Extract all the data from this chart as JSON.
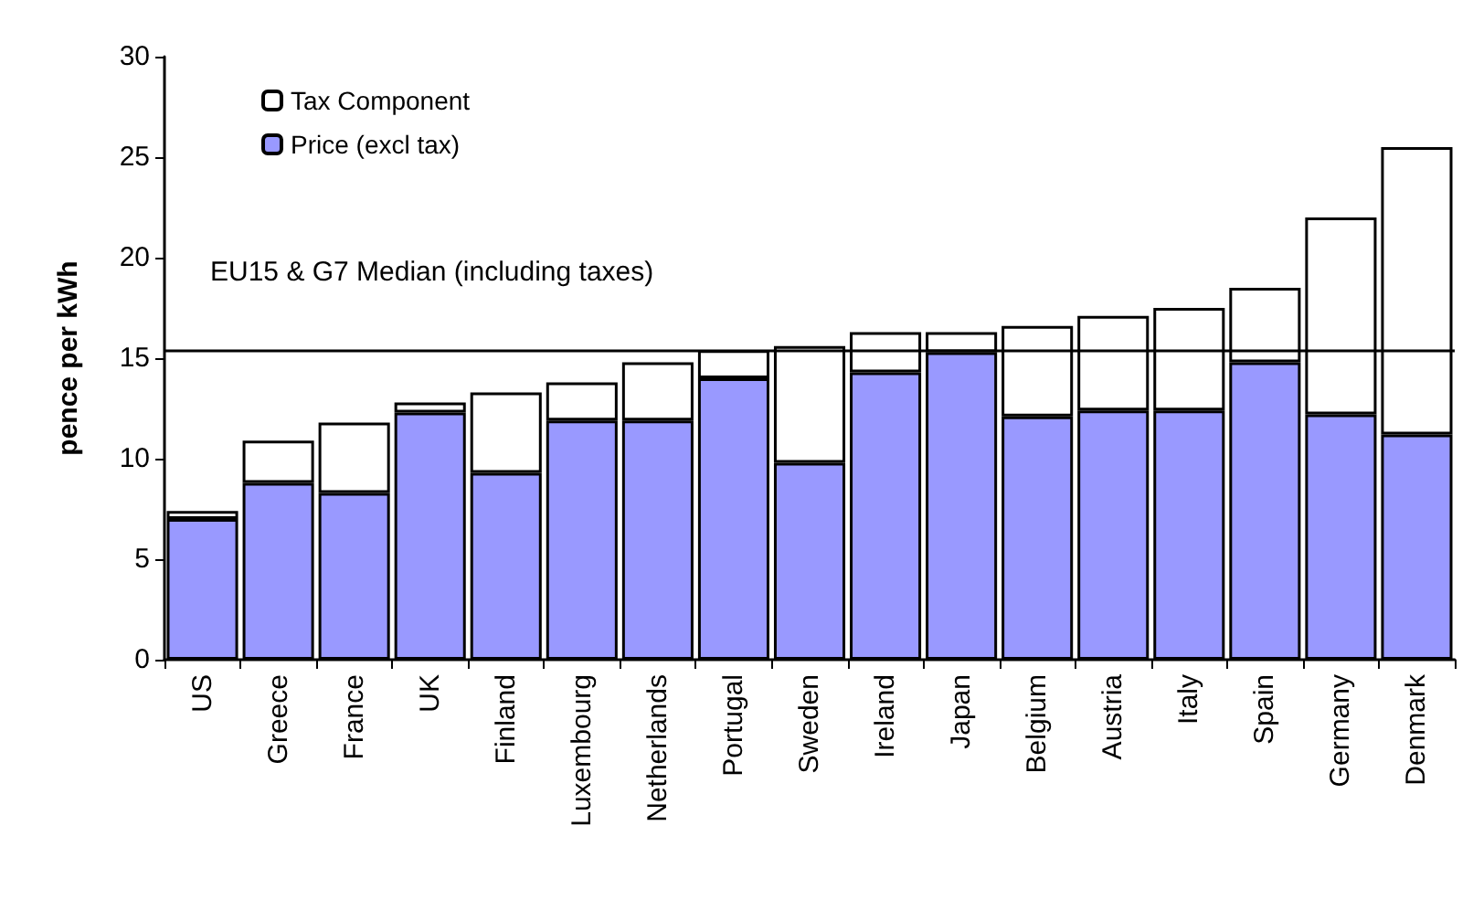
{
  "chart_data": {
    "type": "bar",
    "ylabel": "pence per kWh",
    "categories": [
      "US",
      "Greece",
      "France",
      "UK",
      "Finland",
      "Luxembourg",
      "Netherlands",
      "Portugal",
      "Sweden",
      "Ireland",
      "Japan",
      "Belgium",
      "Austria",
      "Italy",
      "Spain",
      "Germany",
      "Denmark"
    ],
    "stacked": true,
    "series": [
      {
        "name": "Price (excl tax)",
        "color": "#9999ff",
        "values": [
          7.0,
          8.8,
          8.3,
          12.3,
          9.3,
          11.9,
          11.9,
          14.0,
          9.8,
          14.3,
          15.3,
          12.1,
          12.4,
          12.4,
          14.8,
          12.2,
          11.2
        ]
      },
      {
        "name": "Tax Component",
        "color": "#ffffff",
        "values": [
          0.4,
          2.1,
          3.5,
          0.5,
          4.0,
          1.9,
          2.9,
          1.4,
          5.8,
          2.0,
          1.0,
          4.5,
          4.7,
          5.1,
          3.7,
          9.8,
          14.3
        ]
      }
    ],
    "ylim": [
      0,
      30
    ],
    "yticks": [
      0,
      5,
      10,
      15,
      20,
      25,
      30
    ],
    "grid": false,
    "legend": "top left",
    "ref_lines": [
      {
        "axis": "y",
        "value": 15.4,
        "label": "EU15 & G7 Median (including taxes)",
        "color": "#000000"
      }
    ]
  }
}
